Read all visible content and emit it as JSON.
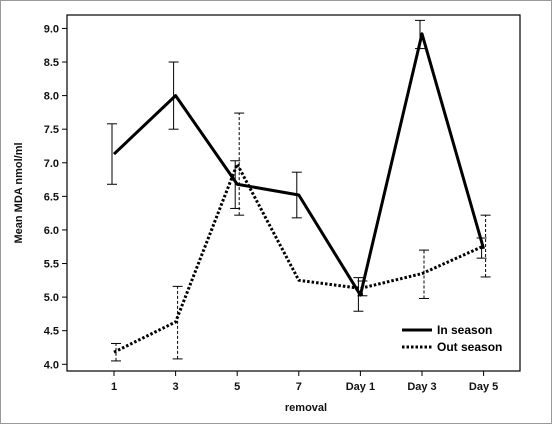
{
  "chart_data": {
    "type": "line",
    "categories": [
      "1",
      "3",
      "5",
      "7",
      "Day 1",
      "Day 3",
      "Day 5"
    ],
    "xlabel": "removal",
    "ylabel": "Mean MDA nmol/ml",
    "ylim": [
      3.9,
      9.2
    ],
    "yticks": [
      "4.0",
      "4.5",
      "5.0",
      "5.5",
      "6.0",
      "6.5",
      "7.0",
      "7.5",
      "8.0",
      "8.5",
      "9.0"
    ],
    "legend_position": "bottom-right",
    "series": [
      {
        "name": "In season",
        "style": "solid",
        "color": "#000000",
        "values": [
          7.13,
          8.0,
          6.68,
          6.52,
          5.03,
          8.92,
          5.72
        ],
        "error_low": [
          6.68,
          7.5,
          6.32,
          6.18,
          4.79,
          8.7,
          5.58
        ],
        "error_high": [
          7.58,
          8.5,
          7.03,
          6.86,
          5.29,
          9.12,
          5.88
        ]
      },
      {
        "name": "Out season",
        "style": "dotted",
        "color": "#000000",
        "values": [
          4.18,
          4.63,
          6.98,
          5.25,
          5.13,
          5.35,
          5.76
        ],
        "error_low": [
          4.05,
          4.08,
          6.22,
          5.25,
          5.02,
          4.98,
          5.3
        ],
        "error_high": [
          4.31,
          5.16,
          7.74,
          5.25,
          5.24,
          5.7,
          6.22
        ]
      }
    ]
  }
}
